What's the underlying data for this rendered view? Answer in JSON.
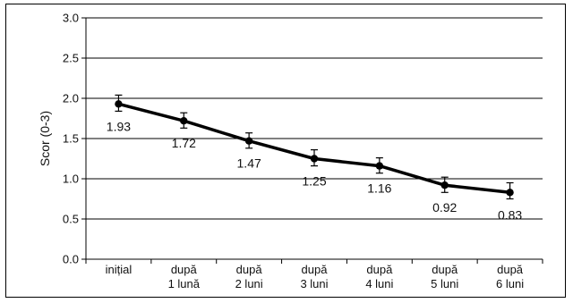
{
  "chart_data": {
    "type": "line",
    "title": "",
    "xlabel": "",
    "ylabel": "Scor (0-3)",
    "ylim": [
      0,
      3
    ],
    "yticks": [
      "0.0",
      "0.5",
      "1.0",
      "1.5",
      "2.0",
      "2.5",
      "3.0"
    ],
    "grid": true,
    "categories": [
      [
        "inițial"
      ],
      [
        "după",
        "1 lună"
      ],
      [
        "după",
        "2 luni"
      ],
      [
        "după",
        "3 luni"
      ],
      [
        "după",
        "4 luni"
      ],
      [
        "după",
        "5 luni"
      ],
      [
        "după",
        "6 luni"
      ]
    ],
    "values": [
      1.93,
      1.72,
      1.47,
      1.25,
      1.16,
      0.92,
      0.83
    ],
    "error_low": [
      1.84,
      1.63,
      1.38,
      1.16,
      1.07,
      0.83,
      0.75
    ],
    "error_high": [
      2.04,
      1.82,
      1.57,
      1.36,
      1.26,
      1.02,
      0.95
    ],
    "data_labels": [
      "1.93",
      "1.72",
      "1.47",
      "1.25",
      "1.16",
      "0.92",
      "0.83"
    ],
    "line_color": "#000000"
  }
}
